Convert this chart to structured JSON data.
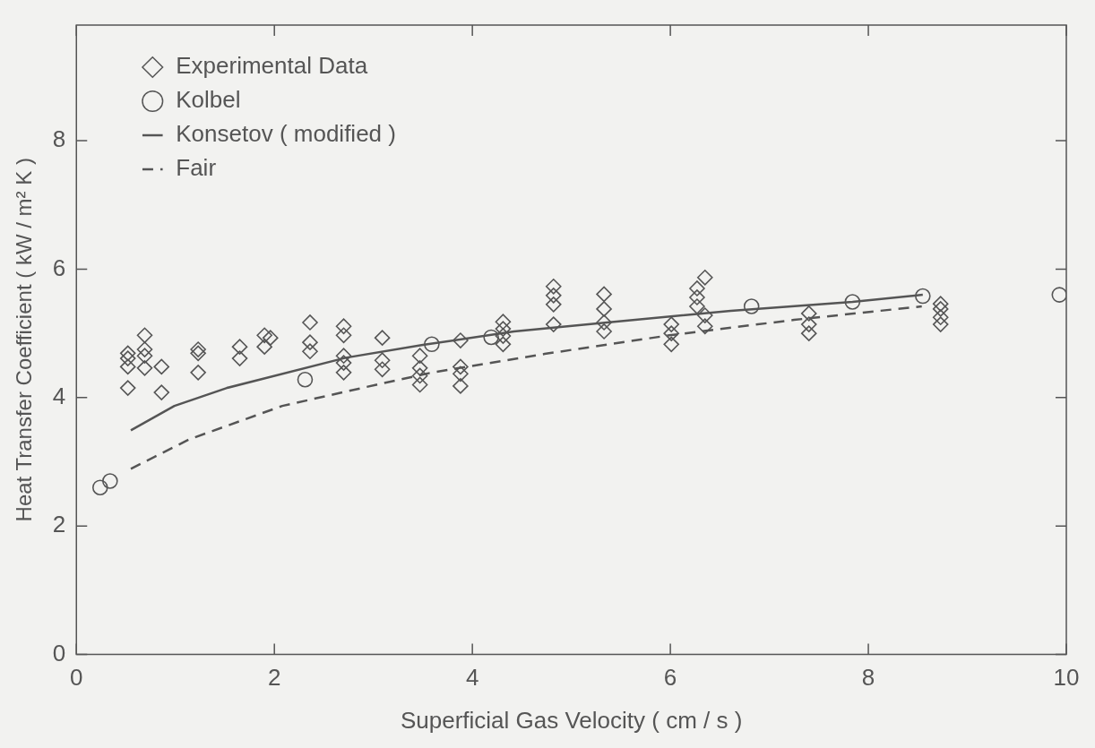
{
  "chart_data": {
    "type": "scatter",
    "xlabel": "Superficial Gas Velocity ( cm / s )",
    "ylabel": "Heat Transfer Coefficient ( kW / m² K )",
    "xlim": [
      0,
      10
    ],
    "ylim": [
      0,
      9.8
    ],
    "xticks": [
      0,
      2,
      4,
      6,
      8,
      10
    ],
    "yticks": [
      0,
      2,
      4,
      6,
      8
    ],
    "grid": false,
    "legend": "top left",
    "series": [
      {
        "name": "Experimental Data",
        "marker": "diamond",
        "color": "#555555",
        "x": [
          0.52,
          0.52,
          0.52,
          0.52,
          0.69,
          0.69,
          0.69,
          0.69,
          0.86,
          0.86,
          1.23,
          1.23,
          1.23,
          1.65,
          1.65,
          1.9,
          1.9,
          1.96,
          2.36,
          2.36,
          2.36,
          2.7,
          2.7,
          2.7,
          2.7,
          2.7,
          3.09,
          3.09,
          3.09,
          3.47,
          3.47,
          3.47,
          3.47,
          3.88,
          3.88,
          3.88,
          3.88,
          4.31,
          4.31,
          4.31,
          4.31,
          4.82,
          4.82,
          4.82,
          4.82,
          5.33,
          5.33,
          5.33,
          5.33,
          6.01,
          6.01,
          6.01,
          6.27,
          6.27,
          6.27,
          6.35,
          6.35,
          6.35,
          7.4,
          7.4,
          7.4,
          8.73,
          8.73,
          8.73,
          8.73
        ],
        "values": [
          4.69,
          4.61,
          4.48,
          4.15,
          4.97,
          4.75,
          4.65,
          4.46,
          4.48,
          4.08,
          4.75,
          4.69,
          4.39,
          4.79,
          4.61,
          4.97,
          4.79,
          4.93,
          5.17,
          4.86,
          4.72,
          5.11,
          4.97,
          4.65,
          4.54,
          4.39,
          4.93,
          4.58,
          4.44,
          4.65,
          4.46,
          4.34,
          4.2,
          4.89,
          4.48,
          4.37,
          4.18,
          5.18,
          5.07,
          4.96,
          4.83,
          5.73,
          5.59,
          5.45,
          5.14,
          5.61,
          5.38,
          5.17,
          5.03,
          5.14,
          5.0,
          4.83,
          5.7,
          5.56,
          5.42,
          5.87,
          5.28,
          5.11,
          5.31,
          5.14,
          5.0,
          5.46,
          5.38,
          5.25,
          5.14
        ]
      },
      {
        "name": "Kolbel",
        "marker": "circle",
        "color": "#555555",
        "x": [
          0.24,
          0.34,
          2.31,
          3.59,
          4.19,
          6.82,
          7.84,
          8.55,
          9.93
        ],
        "values": [
          2.6,
          2.7,
          4.28,
          4.83,
          4.94,
          5.42,
          5.49,
          5.58,
          5.6
        ]
      },
      {
        "name": "Konsetov ( modified )",
        "type": "line",
        "marker": "none",
        "line_style": "solid",
        "color": "#555555",
        "x": [
          0.55,
          0.99,
          1.52,
          2.72,
          3.5,
          4.42,
          5.36,
          6.61,
          7.84,
          8.55
        ],
        "values": [
          3.49,
          3.87,
          4.15,
          4.62,
          4.82,
          5.03,
          5.17,
          5.35,
          5.49,
          5.6
        ]
      },
      {
        "name": "Fair",
        "type": "line",
        "marker": "none",
        "line_style": "dashed",
        "color": "#555555",
        "x": [
          0.55,
          1.14,
          2.08,
          3.03,
          3.59,
          4.73,
          5.99,
          7.25,
          8.54
        ],
        "values": [
          2.89,
          3.35,
          3.87,
          4.2,
          4.39,
          4.68,
          4.97,
          5.21,
          5.42
        ]
      }
    ]
  }
}
